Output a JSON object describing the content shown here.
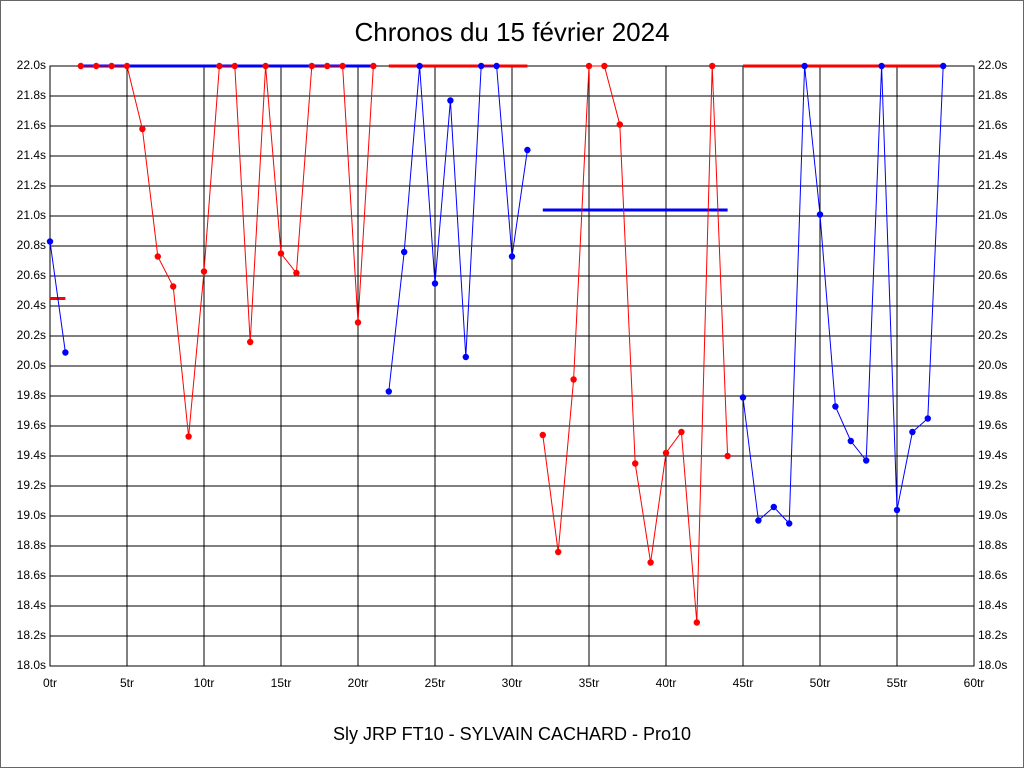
{
  "chart_data": {
    "type": "line",
    "title": "Chronos du 15 février 2024",
    "subtitle": "Sly JRP FT10 - SYLVAIN CACHARD - Pro10",
    "xlim": [
      0,
      60
    ],
    "ylim": [
      18.0,
      22.0
    ],
    "xticks": [
      {
        "value": 0,
        "label": "0tr"
      },
      {
        "value": 5,
        "label": "5tr"
      },
      {
        "value": 10,
        "label": "10tr"
      },
      {
        "value": 15,
        "label": "15tr"
      },
      {
        "value": 20,
        "label": "20tr"
      },
      {
        "value": 25,
        "label": "25tr"
      },
      {
        "value": 30,
        "label": "30tr"
      },
      {
        "value": 35,
        "label": "35tr"
      },
      {
        "value": 40,
        "label": "40tr"
      },
      {
        "value": 45,
        "label": "45tr"
      },
      {
        "value": 50,
        "label": "50tr"
      },
      {
        "value": 55,
        "label": "55tr"
      },
      {
        "value": 60,
        "label": "60tr"
      }
    ],
    "yticks": [
      {
        "value": 18.0,
        "label": "18.0s"
      },
      {
        "value": 18.2,
        "label": "18.2s"
      },
      {
        "value": 18.4,
        "label": "18.4s"
      },
      {
        "value": 18.6,
        "label": "18.6s"
      },
      {
        "value": 18.8,
        "label": "18.8s"
      },
      {
        "value": 19.0,
        "label": "19.0s"
      },
      {
        "value": 19.2,
        "label": "19.2s"
      },
      {
        "value": 19.4,
        "label": "19.4s"
      },
      {
        "value": 19.6,
        "label": "19.6s"
      },
      {
        "value": 19.8,
        "label": "19.8s"
      },
      {
        "value": 20.0,
        "label": "20.0s"
      },
      {
        "value": 20.2,
        "label": "20.2s"
      },
      {
        "value": 20.4,
        "label": "20.4s"
      },
      {
        "value": 20.6,
        "label": "20.6s"
      },
      {
        "value": 20.8,
        "label": "20.8s"
      },
      {
        "value": 21.0,
        "label": "21.0s"
      },
      {
        "value": 21.2,
        "label": "21.2s"
      },
      {
        "value": 21.4,
        "label": "21.4s"
      },
      {
        "value": 21.6,
        "label": "21.6s"
      },
      {
        "value": 21.8,
        "label": "21.8s"
      },
      {
        "value": 22.0,
        "label": "22.0s"
      }
    ],
    "grid": true,
    "series": [
      {
        "color": "#0000ff",
        "x": [
          0,
          1
        ],
        "values": [
          20.83,
          20.09
        ]
      },
      {
        "color": "#ff0000",
        "x": [
          2,
          3,
          4,
          5,
          6,
          7,
          8,
          9,
          10,
          11,
          12,
          13,
          14,
          15,
          16,
          17,
          18,
          19,
          20,
          21
        ],
        "values": [
          22.0,
          22.0,
          22.0,
          22.0,
          21.58,
          20.73,
          20.53,
          19.53,
          20.63,
          22.0,
          22.0,
          20.16,
          22.0,
          20.75,
          20.62,
          22.0,
          22.0,
          22.0,
          20.29,
          22.0
        ]
      },
      {
        "color": "#0000ff",
        "x": [
          22,
          23,
          24,
          25,
          26,
          27,
          28,
          29,
          30,
          31
        ],
        "values": [
          19.83,
          20.76,
          22.0,
          20.55,
          21.77,
          20.06,
          22.0,
          22.0,
          20.73,
          21.44
        ]
      },
      {
        "color": "#ff0000",
        "x": [
          32,
          33,
          34,
          35,
          36,
          37,
          38,
          39,
          40,
          41,
          42,
          43,
          44
        ],
        "values": [
          19.54,
          18.76,
          19.91,
          22.0,
          22.0,
          21.61,
          19.35,
          18.69,
          19.42,
          19.56,
          18.29,
          22.0,
          19.4
        ]
      },
      {
        "color": "#0000ff",
        "x": [
          45,
          46,
          47,
          48,
          49,
          50,
          51,
          52,
          53,
          54,
          55,
          56,
          57,
          58
        ],
        "values": [
          19.79,
          18.97,
          19.06,
          18.95,
          22.0,
          21.01,
          19.73,
          19.5,
          19.37,
          22.0,
          19.04,
          19.56,
          19.65,
          22.0
        ]
      }
    ],
    "averages": [
      {
        "color": "#ff0000",
        "from": 0,
        "to": 1,
        "value": 20.45
      },
      {
        "color": "#0000ff",
        "from": 2,
        "to": 21,
        "value": 22.0
      },
      {
        "color": "#ff0000",
        "from": 22,
        "to": 31,
        "value": 22.0
      },
      {
        "color": "#0000ff",
        "from": 32,
        "to": 44,
        "value": 21.04
      },
      {
        "color": "#ff0000",
        "from": 45,
        "to": 58,
        "value": 22.0
      }
    ]
  }
}
